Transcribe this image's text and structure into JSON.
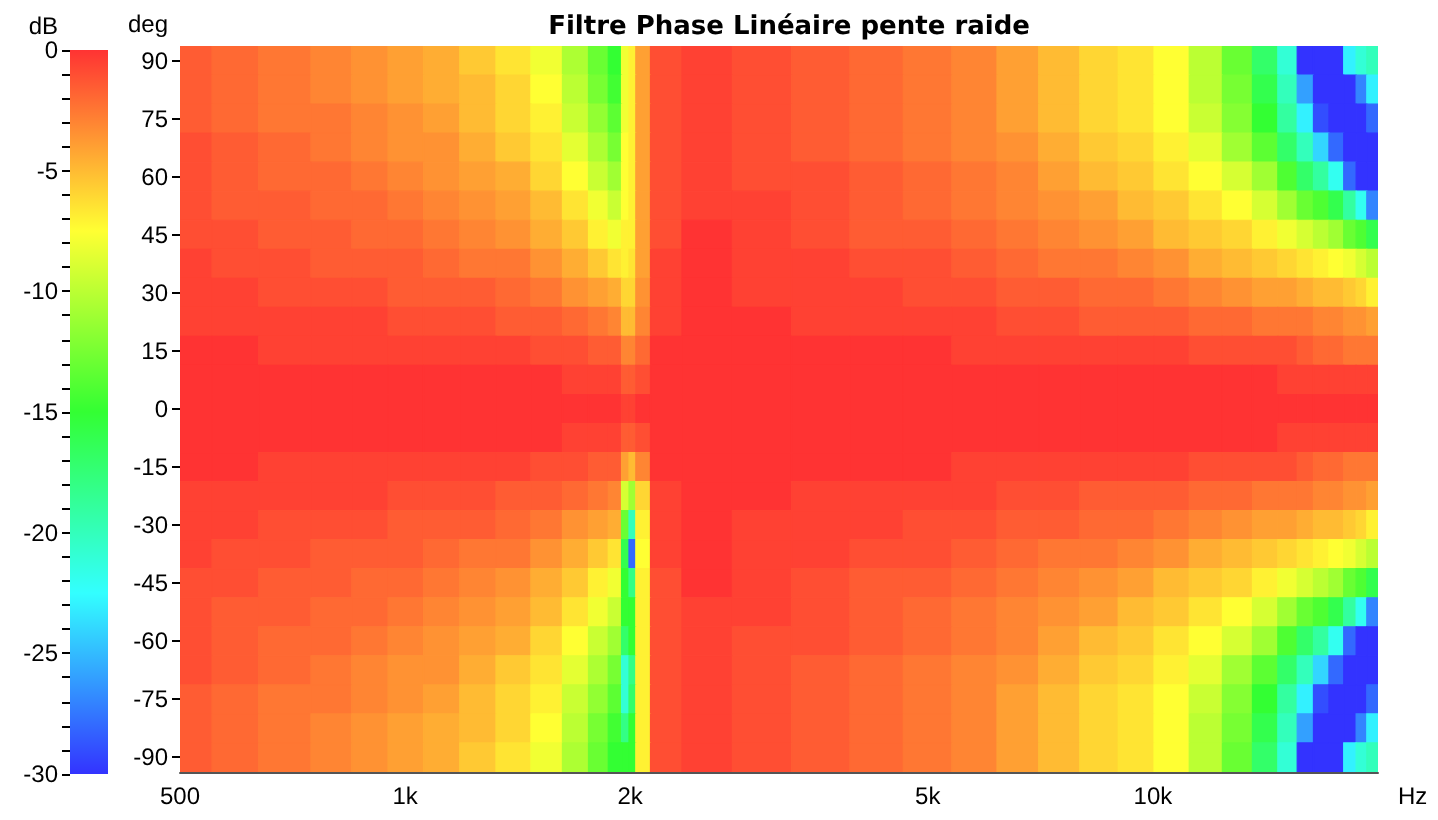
{
  "chart_data": {
    "type": "heatmap",
    "title": "Filtre Phase Linéaire pente raide",
    "xlabel": "Hz",
    "ylabel": "deg",
    "clabel": "dB",
    "log": "x",
    "x": [
      525,
      580,
      700,
      800,
      900,
      1000,
      1120,
      1250,
      1400,
      1550,
      1700,
      1820,
      1920,
      1975,
      2010,
      2060,
      2200,
      2500,
      3000,
      3600,
      4300,
      5000,
      5800,
      6600,
      7500,
      8500,
      9500,
      10600,
      11800,
      13000,
      14200,
      15200,
      16000,
      16800,
      17600,
      18400,
      19000,
      19650
    ],
    "y_categories": [
      "90",
      null,
      "75",
      null,
      "60",
      null,
      "45",
      null,
      "30",
      null,
      "15",
      null,
      "0",
      null,
      "-15",
      null,
      "-30",
      null,
      "-45",
      null,
      "-60",
      null,
      "-75",
      null,
      "-90"
    ],
    "xlim": [
      500,
      20000
    ],
    "xticks": [
      500,
      {
        "value": 1000,
        "label": "1k"
      },
      {
        "value": 2000,
        "label": "2k"
      },
      {
        "value": 5000,
        "label": "5k"
      },
      {
        "value": 10000,
        "label": "10k"
      }
    ],
    "clim": [
      -30,
      0
    ],
    "cticks": [
      -30,
      {
        "value": -29,
        "label": null
      },
      {
        "value": -28,
        "label": null
      },
      {
        "value": -27,
        "label": null
      },
      {
        "value": -26,
        "label": null
      },
      -25,
      {
        "value": -24,
        "label": null
      },
      {
        "value": -23,
        "label": null
      },
      {
        "value": -22,
        "label": null
      },
      {
        "value": -21,
        "label": null
      },
      -20,
      {
        "value": -19,
        "label": null
      },
      {
        "value": -18,
        "label": null
      },
      {
        "value": -17,
        "label": null
      },
      {
        "value": -16,
        "label": null
      },
      -15,
      {
        "value": -14,
        "label": null
      },
      {
        "value": -13,
        "label": null
      },
      {
        "value": -12,
        "label": null
      },
      {
        "value": -11,
        "label": null
      },
      -10,
      {
        "value": -9,
        "label": null
      },
      {
        "value": -8,
        "label": null
      },
      {
        "value": -7,
        "label": null
      },
      {
        "value": -6,
        "label": null
      },
      -5,
      {
        "value": -4,
        "label": null
      },
      {
        "value": -3,
        "label": null
      },
      {
        "value": -2,
        "label": null
      },
      {
        "value": -1,
        "label": null
      },
      0
    ],
    "cells": [
      [
        -1.5,
        -2,
        -2.5,
        -3,
        -3.5,
        -4,
        -4.5,
        -5.5,
        -6.5,
        -8,
        -10.5,
        -13,
        -15,
        -8,
        -7,
        -4,
        -1,
        -0.5,
        -1,
        -1.5,
        -2,
        -2.5,
        -3,
        -4,
        -5,
        -6,
        -6.5,
        -7.5,
        -10,
        -13,
        -17,
        -21,
        -30,
        -30,
        -30,
        -23,
        -21,
        -20
      ],
      [
        -1.5,
        -2,
        -2.5,
        -3,
        -3.5,
        -4,
        -4.5,
        -5,
        -6,
        -7.5,
        -10,
        -12.5,
        -14.5,
        -8,
        -7,
        -4,
        -1,
        -0.5,
        -1,
        -1.5,
        -2,
        -2.5,
        -3,
        -4,
        -5,
        -6,
        -6.5,
        -7.5,
        -10,
        -12.5,
        -16,
        -20,
        -26,
        -30,
        -30,
        -30,
        -27,
        -23
      ],
      [
        -1.5,
        -2,
        -2.5,
        -2.5,
        -3,
        -3.5,
        -4,
        -5,
        -6,
        -7,
        -9.5,
        -11.5,
        -13.5,
        -8,
        -7,
        -4,
        -1,
        -0.5,
        -1,
        -1.5,
        -2,
        -2.5,
        -3,
        -4,
        -5,
        -6,
        -6.5,
        -7.5,
        -9.5,
        -12,
        -15,
        -19,
        -23,
        -29,
        -30,
        -30,
        -30,
        -28
      ],
      [
        -1,
        -1.5,
        -2,
        -2.5,
        -3,
        -3.5,
        -3.5,
        -4.5,
        -5.5,
        -6.5,
        -8.5,
        -10.5,
        -12.5,
        -7.5,
        -7,
        -4,
        -1,
        -0.5,
        -1,
        -1.5,
        -2,
        -2.5,
        -3,
        -3.5,
        -4.5,
        -5.5,
        -6,
        -7,
        -8.5,
        -11,
        -13.5,
        -17,
        -20,
        -24,
        -28,
        -30,
        -30,
        -30
      ],
      [
        -1,
        -1.5,
        -2,
        -2,
        -2.5,
        -3,
        -3.5,
        -4,
        -4.5,
        -6,
        -7.5,
        -9.5,
        -11,
        -7.5,
        -7,
        -4,
        -1,
        -0.5,
        -1,
        -1,
        -1.5,
        -2,
        -2.5,
        -3,
        -4,
        -5,
        -5.5,
        -6.5,
        -7.5,
        -9,
        -11,
        -14,
        -17,
        -19,
        -22,
        -28,
        -30,
        -30
      ],
      [
        -1,
        -1.5,
        -1.5,
        -2,
        -2,
        -2.5,
        -3,
        -3.5,
        -4,
        -5,
        -6.5,
        -8,
        -9.5,
        -7.5,
        -7,
        -4,
        -1,
        -0.5,
        -0.5,
        -1,
        -1.5,
        -2,
        -2.5,
        -3,
        -3.5,
        -4,
        -5,
        -5.5,
        -6.5,
        -7.5,
        -9,
        -11,
        -13,
        -14,
        -16,
        -19,
        -22,
        -27
      ],
      [
        -1,
        -1,
        -1.5,
        -1.5,
        -2,
        -2,
        -2.5,
        -3,
        -3.5,
        -4.5,
        -5.5,
        -7,
        -8,
        -7,
        -7,
        -4,
        -1,
        0,
        -0.5,
        -1,
        -1.5,
        -1.5,
        -2,
        -2.5,
        -3,
        -3.5,
        -4,
        -5,
        -5.5,
        -6,
        -7,
        -8,
        -9,
        -10,
        -11,
        -13,
        -14,
        -16
      ],
      [
        -0.5,
        -1,
        -1,
        -1.5,
        -1.5,
        -1.5,
        -2,
        -2.5,
        -2.5,
        -3.5,
        -4.5,
        -5.5,
        -6.5,
        -7,
        -6.5,
        -4,
        -0.5,
        0,
        -0.5,
        -0.5,
        -1,
        -1,
        -1.5,
        -2,
        -2.5,
        -2.5,
        -3,
        -3.5,
        -4.5,
        -5,
        -5.5,
        -6,
        -6.5,
        -7,
        -7.5,
        -8,
        -9,
        -10
      ],
      [
        -0.5,
        -0.5,
        -1,
        -1,
        -1,
        -1.5,
        -1.5,
        -1.5,
        -2,
        -2.5,
        -3.5,
        -4,
        -4.5,
        -6,
        -6,
        -3.5,
        -0.5,
        0,
        -0.5,
        -0.5,
        -0.5,
        -1,
        -1,
        -1.5,
        -1.5,
        -2,
        -2,
        -2.5,
        -3,
        -3.5,
        -4,
        -4,
        -4.5,
        -5,
        -5,
        -5.5,
        -6,
        -7
      ],
      [
        -0.5,
        -0.5,
        -0.5,
        -0.5,
        -0.5,
        -1,
        -1,
        -1,
        -1.5,
        -1.5,
        -2,
        -2.5,
        -3,
        -5,
        -5,
        -3,
        -0.5,
        0,
        0,
        -0.5,
        -0.5,
        -0.5,
        -0.5,
        -1,
        -1,
        -1.5,
        -1.5,
        -1.5,
        -2,
        -2,
        -2.5,
        -2.5,
        -2.5,
        -3,
        -3,
        -3.5,
        -3.5,
        -4
      ],
      [
        0,
        0,
        -0.5,
        -0.5,
        -0.5,
        -0.5,
        -0.5,
        -0.5,
        -0.5,
        -1,
        -1,
        -1.5,
        -1.5,
        -3,
        -3,
        -2,
        0,
        0,
        0,
        0,
        0,
        0,
        -0.5,
        -0.5,
        -0.5,
        -0.5,
        -0.5,
        -0.5,
        -1,
        -1,
        -1,
        -1,
        -1.5,
        -2,
        -2,
        -2.5,
        -2.5,
        -2.5
      ],
      [
        0,
        0,
        0,
        0,
        0,
        0,
        0,
        0,
        0,
        0,
        -0.5,
        -0.5,
        -0.5,
        -1.5,
        -1.5,
        -1,
        0,
        0,
        0,
        0,
        0,
        0,
        0,
        0,
        0,
        0,
        0,
        0,
        0,
        0,
        0,
        -0.5,
        -0.5,
        -0.5,
        -0.5,
        -0.5,
        -0.5,
        -0.5
      ],
      [
        0,
        0,
        0,
        0,
        0,
        0,
        0,
        0,
        0,
        0,
        0,
        0,
        0,
        -0.5,
        -0.5,
        0,
        0,
        0,
        0,
        0,
        0,
        0,
        0,
        0,
        0,
        0,
        0,
        0,
        0,
        0,
        0,
        0,
        0,
        0,
        0,
        0,
        0,
        0
      ],
      [
        0,
        0,
        0,
        0,
        0,
        0,
        0,
        0,
        0,
        0,
        -0.5,
        -0.5,
        -0.5,
        -1.5,
        -1.5,
        -1,
        0,
        0,
        0,
        0,
        0,
        0,
        0,
        0,
        0,
        0,
        0,
        0,
        0,
        0,
        0,
        -0.5,
        -0.5,
        -0.5,
        -0.5,
        -0.5,
        -0.5,
        -0.5
      ],
      [
        0,
        0,
        -0.5,
        -0.5,
        -0.5,
        -0.5,
        -0.5,
        -0.5,
        -0.5,
        -1,
        -1,
        -1.5,
        -1.5,
        -4,
        -5,
        -3,
        0,
        0,
        0,
        0,
        0,
        0,
        -0.5,
        -0.5,
        -0.5,
        -0.5,
        -0.5,
        -0.5,
        -1,
        -1,
        -1,
        -1,
        -1.5,
        -2,
        -2,
        -2.5,
        -2.5,
        -2.5
      ],
      [
        -0.5,
        -0.5,
        -0.5,
        -0.5,
        -0.5,
        -1,
        -1,
        -1,
        -1.5,
        -1.5,
        -2,
        -2.5,
        -3,
        -9,
        -11,
        -6,
        -0.5,
        0,
        0,
        -0.5,
        -0.5,
        -0.5,
        -0.5,
        -1,
        -1,
        -1.5,
        -1.5,
        -1.5,
        -2,
        -2,
        -2.5,
        -2.5,
        -2.5,
        -3,
        -3,
        -3.5,
        -3.5,
        -4
      ],
      [
        -0.5,
        -0.5,
        -1,
        -1,
        -1,
        -1.5,
        -1.5,
        -1.5,
        -2,
        -2.5,
        -3.5,
        -4,
        -4.5,
        -13,
        -20,
        -7,
        -0.5,
        0,
        -0.5,
        -0.5,
        -0.5,
        -1,
        -1,
        -1.5,
        -1.5,
        -2,
        -2,
        -2.5,
        -3,
        -3.5,
        -4,
        -4,
        -4.5,
        -5,
        -5,
        -5.5,
        -6,
        -7
      ],
      [
        -0.5,
        -1,
        -1,
        -1.5,
        -1.5,
        -1.5,
        -2,
        -2.5,
        -2.5,
        -3.5,
        -4.5,
        -5.5,
        -6.5,
        -16,
        -28,
        -7.5,
        -0.5,
        0,
        -0.5,
        -0.5,
        -1,
        -1,
        -1.5,
        -2,
        -2.5,
        -2.5,
        -3,
        -3.5,
        -4.5,
        -5,
        -5.5,
        -6,
        -6.5,
        -7,
        -7.5,
        -8,
        -9,
        -10
      ],
      [
        -1,
        -1,
        -1.5,
        -1.5,
        -2,
        -2,
        -2.5,
        -3,
        -3.5,
        -4.5,
        -5.5,
        -7,
        -8,
        -15,
        -18,
        -7,
        -1,
        0,
        -0.5,
        -1,
        -1.5,
        -1.5,
        -2,
        -2.5,
        -3,
        -3.5,
        -4,
        -5,
        -5.5,
        -6,
        -7,
        -8,
        -9,
        -10,
        -11,
        -13,
        -14,
        -16
      ],
      [
        -1,
        -1.5,
        -1.5,
        -2,
        -2,
        -2.5,
        -3,
        -3.5,
        -4,
        -5,
        -6.5,
        -8,
        -9.5,
        -15,
        -15,
        -7,
        -1,
        -0.5,
        -0.5,
        -1,
        -1.5,
        -2,
        -2.5,
        -3,
        -3.5,
        -4,
        -5,
        -5.5,
        -6.5,
        -7.5,
        -9,
        -11,
        -13,
        -14,
        -16,
        -19,
        -22,
        -27
      ],
      [
        -1,
        -1.5,
        -2,
        -2,
        -2.5,
        -3,
        -3.5,
        -4,
        -4.5,
        -6,
        -7.5,
        -9.5,
        -11,
        -17,
        -15,
        -7,
        -1,
        -0.5,
        -1,
        -1,
        -1.5,
        -2,
        -2.5,
        -3,
        -4,
        -5,
        -5.5,
        -6.5,
        -7.5,
        -9,
        -11,
        -14,
        -17,
        -19,
        -22,
        -28,
        -30,
        -30
      ],
      [
        -1,
        -1.5,
        -2,
        -2.5,
        -3,
        -3.5,
        -3.5,
        -4.5,
        -5.5,
        -6.5,
        -8.5,
        -10.5,
        -12.5,
        -21,
        -18,
        -7,
        -1,
        -0.5,
        -1,
        -1.5,
        -2,
        -2.5,
        -3,
        -3.5,
        -4.5,
        -5.5,
        -6,
        -7,
        -8.5,
        -11,
        -13.5,
        -17,
        -20,
        -24,
        -28,
        -30,
        -30,
        -30
      ],
      [
        -1.5,
        -2,
        -2.5,
        -2.5,
        -3,
        -3.5,
        -4,
        -5,
        -6,
        -7,
        -9.5,
        -11.5,
        -13.5,
        -21,
        -17,
        -7,
        -1,
        -0.5,
        -1,
        -1.5,
        -2,
        -2.5,
        -3,
        -4,
        -5,
        -6,
        -6.5,
        -7.5,
        -9.5,
        -12,
        -15,
        -19,
        -23,
        -29,
        -30,
        -30,
        -30,
        -28
      ],
      [
        -1.5,
        -2,
        -2.5,
        -3,
        -3.5,
        -4,
        -4.5,
        -5,
        -6,
        -7.5,
        -10,
        -12.5,
        -14.5,
        -18,
        -15,
        -7,
        -1,
        -0.5,
        -1,
        -1.5,
        -2,
        -2.5,
        -3,
        -4,
        -5,
        -6,
        -6.5,
        -7.5,
        -10,
        -12.5,
        -16,
        -20,
        -26,
        -30,
        -30,
        -30,
        -27,
        -23
      ],
      [
        -1.5,
        -2,
        -2.5,
        -3,
        -3.5,
        -4,
        -4.5,
        -5.5,
        -6.5,
        -8,
        -10.5,
        -13,
        -15,
        -15,
        -15,
        -7,
        -1,
        -0.5,
        -1,
        -1.5,
        -2,
        -2.5,
        -3,
        -4,
        -5,
        -6,
        -6.5,
        -7.5,
        -10,
        -13,
        -17,
        -21,
        -30,
        -30,
        -30,
        -23,
        -21,
        -20
      ]
    ]
  }
}
